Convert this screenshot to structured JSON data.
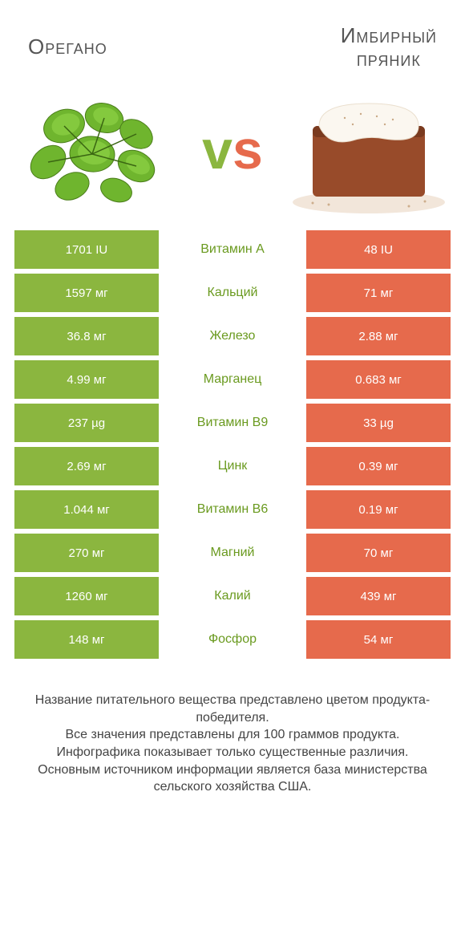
{
  "colors": {
    "green": "#8bb63f",
    "orange": "#e66a4c",
    "mid_green": "#6a9a1f",
    "mid_orange": "#d14d2e",
    "bg": "#ffffff"
  },
  "header": {
    "left_title": "Oрегано",
    "right_title": "Имбирный\nпряник",
    "vs_v": "v",
    "vs_s": "s"
  },
  "rows": [
    {
      "left": "1701 IU",
      "label": "Витамин A",
      "right": "48 IU",
      "winner": "green"
    },
    {
      "left": "1597 мг",
      "label": "Кальций",
      "right": "71 мг",
      "winner": "green"
    },
    {
      "left": "36.8 мг",
      "label": "Железо",
      "right": "2.88 мг",
      "winner": "green"
    },
    {
      "left": "4.99 мг",
      "label": "Марганец",
      "right": "0.683 мг",
      "winner": "green"
    },
    {
      "left": "237 µg",
      "label": "Витамин B9",
      "right": "33 µg",
      "winner": "green"
    },
    {
      "left": "2.69 мг",
      "label": "Цинк",
      "right": "0.39 мг",
      "winner": "green"
    },
    {
      "left": "1.044 мг",
      "label": "Витамин B6",
      "right": "0.19 мг",
      "winner": "green"
    },
    {
      "left": "270 мг",
      "label": "Магний",
      "right": "70 мг",
      "winner": "green"
    },
    {
      "left": "1260 мг",
      "label": "Калий",
      "right": "439 мг",
      "winner": "green"
    },
    {
      "left": "148 мг",
      "label": "Фосфор",
      "right": "54 мг",
      "winner": "green"
    }
  ],
  "footer": {
    "line1": "Название питательного вещества представлено цветом продукта-победителя.",
    "line2": "Все значения представлены для 100 граммов продукта.",
    "line3": "Инфографика показывает только существенные различия.",
    "line4": "Основным источником информации является база министерства сельского хозяйства США."
  }
}
